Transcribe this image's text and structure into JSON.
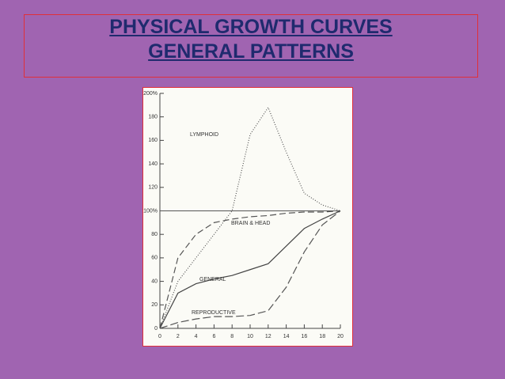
{
  "slide": {
    "title": [
      "PHYSICAL GROWTH CURVES",
      "GENERAL PATTERNS"
    ]
  },
  "chart_data": {
    "type": "line",
    "x": [
      0,
      2,
      4,
      6,
      8,
      10,
      12,
      14,
      16,
      18,
      20
    ],
    "xlim": [
      0,
      20
    ],
    "xticks": [
      0,
      2,
      4,
      6,
      8,
      10,
      12,
      14,
      16,
      18,
      20
    ],
    "ylim": [
      0,
      200
    ],
    "yticks": [
      0,
      20,
      40,
      60,
      80,
      {
        "value": 100,
        "label": "100%"
      },
      120,
      140,
      160,
      180,
      {
        "value": 200,
        "label": "200%"
      }
    ],
    "reference_line": 100,
    "series": [
      {
        "name": "LYMPHOID",
        "color": "#555555",
        "dash": "1,2",
        "values": [
          0,
          40,
          60,
          80,
          100,
          165,
          188,
          150,
          115,
          105,
          100
        ]
      },
      {
        "name": "BRAIN & HEAD",
        "color": "#555555",
        "dash": "8,4",
        "values": [
          0,
          60,
          80,
          90,
          93,
          95,
          96,
          98,
          99,
          99,
          100
        ]
      },
      {
        "name": "GENERAL",
        "color": "#444444",
        "dash": "none",
        "values": [
          0,
          30,
          38,
          42,
          45,
          50,
          55,
          70,
          85,
          93,
          100
        ]
      },
      {
        "name": "REPRODUCTIVE",
        "color": "#555555",
        "dash": "10,4",
        "values": [
          0,
          5,
          8,
          10,
          10,
          11,
          15,
          35,
          65,
          88,
          100
        ]
      }
    ]
  }
}
